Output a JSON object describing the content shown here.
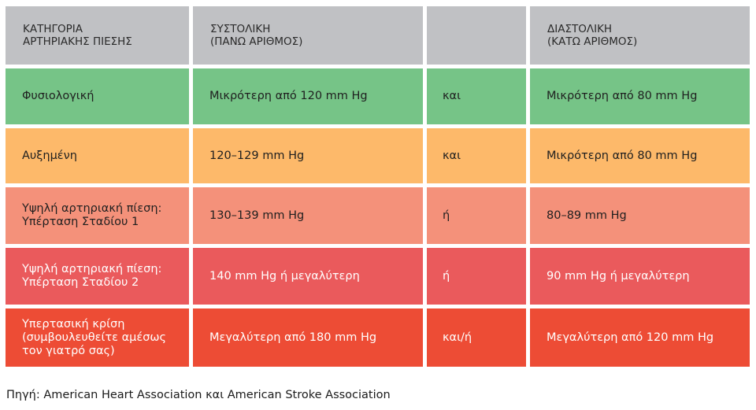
{
  "header": {
    "category": [
      "ΚΑΤΗΓΟΡΙΑ",
      "ΑΡΤΗΡΙΑΚΗΣ ΠΙΕΣΗΣ"
    ],
    "systolic": [
      "ΣΥΣΤΟΛΙΚΗ",
      "(ΠΑΝΩ ΑΡΙΘΜΟΣ)"
    ],
    "connector": "",
    "diastolic": [
      "ΔΙΑΣΤΟΛΙΚΗ",
      "(ΚΑΤΩ ΑΡΙΘΜΟΣ)"
    ]
  },
  "rows": [
    {
      "category": [
        "Φυσιολογική"
      ],
      "systolic": "Μικρότερη από 120 mm Hg",
      "connector": "και",
      "diastolic": "Μικρότερη από 80 mm Hg",
      "color": "#76c487"
    },
    {
      "category": [
        "Αυξημένη"
      ],
      "systolic": "120–129 mm Hg",
      "connector": "και",
      "diastolic": "Μικρότερη από 80 mm Hg",
      "color": "#fdb96a"
    },
    {
      "category": [
        "Υψηλή αρτηριακή πίεση:",
        "Υπέρταση Σταδίου 1"
      ],
      "systolic": "130–139 mm Hg",
      "connector": "ή",
      "diastolic": "80–89 mm Hg",
      "color": "#f4917a"
    },
    {
      "category": [
        "Υψηλή αρτηριακή πίεση:",
        "Υπέρταση Σταδίου 2"
      ],
      "systolic": "140 mm Hg ή μεγαλύτερη",
      "connector": "ή",
      "diastolic": "90 mm Hg ή μεγαλύτερη",
      "color": "#ea5a5c"
    },
    {
      "category": [
        "Υπερτασική κρίση",
        "(συμβουλευθείτε αμέσως",
        "τον γιατρό σας)"
      ],
      "systolic": "Μεγαλύτερη από 180 mm Hg",
      "connector": "και/ή",
      "diastolic": "Μεγαλύτερη από 120 mm Hg",
      "color": "#ed4c35"
    }
  ],
  "source": "Πηγή: American Heart Association και American Stroke Association"
}
